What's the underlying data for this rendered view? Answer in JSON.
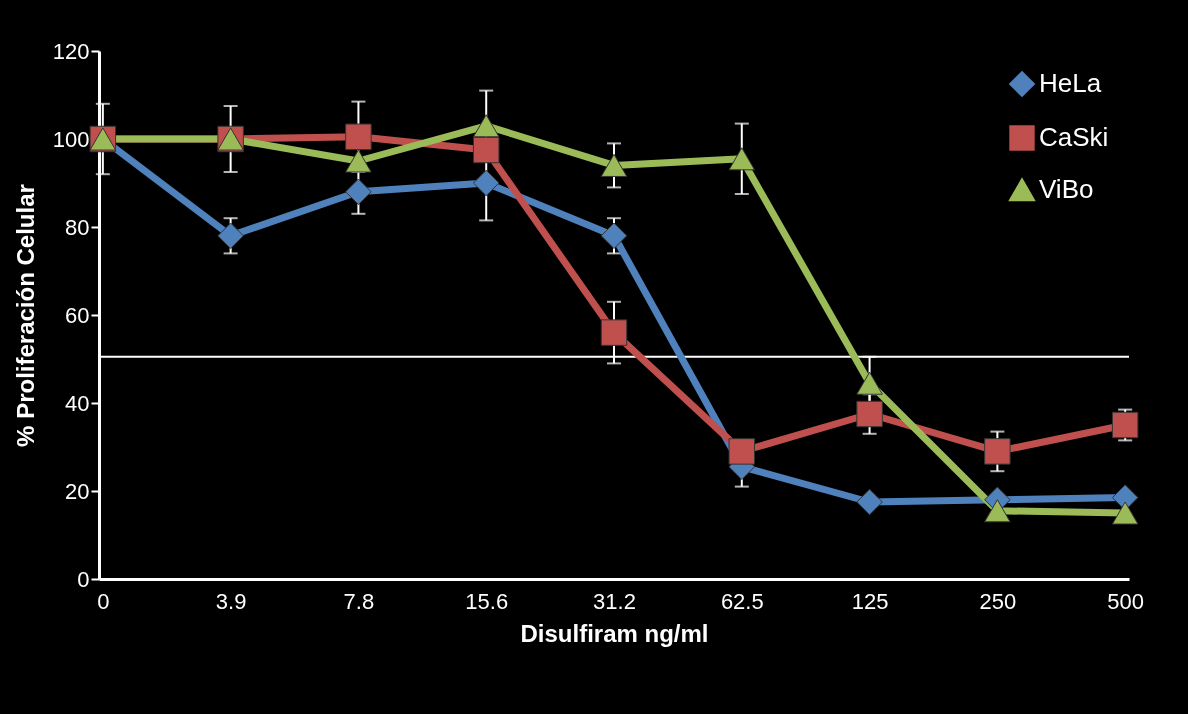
{
  "chart_data": {
    "type": "line",
    "xlabel": "Disulfiram ng/ml",
    "ylabel": "% Proliferación Celular",
    "categories": [
      "0",
      "3.9",
      "7.8",
      "15.6",
      "31.2",
      "62.5",
      "125",
      "250",
      "500"
    ],
    "series": [
      {
        "name": "HeLa",
        "color": "#4f81bd",
        "marker": "diamond",
        "values": [
          100,
          78,
          88,
          90,
          78,
          25.5,
          17.5,
          18,
          18.5
        ],
        "errors": [
          null,
          4,
          5,
          8.5,
          4,
          4.5,
          null,
          null,
          null
        ]
      },
      {
        "name": "CaSki",
        "color": "#c0504d",
        "marker": "square",
        "values": [
          100,
          100,
          100.5,
          97.5,
          56,
          29,
          37.5,
          29,
          35
        ],
        "errors": [
          8,
          7.5,
          8,
          null,
          7,
          null,
          4.5,
          4.5,
          3.5
        ]
      },
      {
        "name": "ViBo",
        "color": "#9bbb59",
        "marker": "triangle",
        "values": [
          100,
          100,
          95,
          103,
          94,
          95.5,
          44.5,
          15.5,
          15
        ],
        "errors": [
          null,
          null,
          null,
          8,
          5,
          8,
          6,
          null,
          null
        ]
      }
    ],
    "ylim": [
      0,
      120
    ],
    "yticks": [
      0,
      20,
      40,
      60,
      80,
      100,
      120
    ],
    "ref_lines": [
      {
        "axis": "y",
        "value": 50.5,
        "color": "#ffffff"
      }
    ],
    "legend": "top right"
  }
}
